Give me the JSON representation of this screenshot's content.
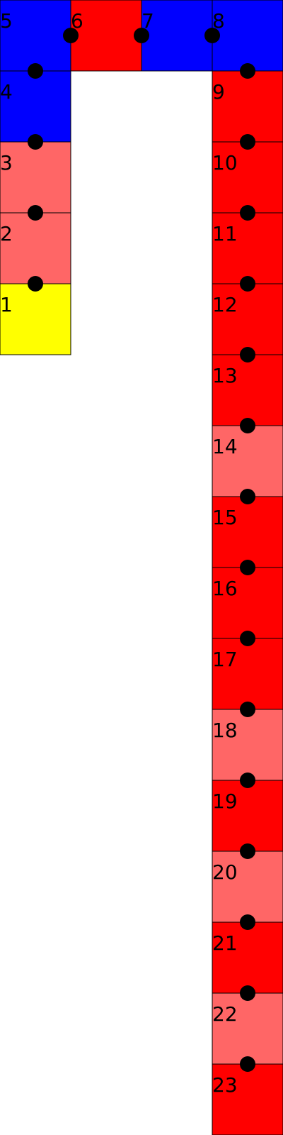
{
  "colors": {
    "background": "#ffffff",
    "blue": "#0000ff",
    "red": "#ff0000",
    "salmon": "#ff6666",
    "yellow": "#ffff00",
    "cell_border": "#000000",
    "connector": "#000000"
  },
  "cells": [
    {
      "label": "1",
      "color": "yellow"
    },
    {
      "label": "2",
      "color": "salmon"
    },
    {
      "label": "3",
      "color": "salmon"
    },
    {
      "label": "4",
      "color": "blue"
    },
    {
      "label": "5",
      "color": "blue"
    },
    {
      "label": "6",
      "color": "red"
    },
    {
      "label": "7",
      "color": "blue"
    },
    {
      "label": "8",
      "color": "blue"
    },
    {
      "label": "9",
      "color": "red"
    },
    {
      "label": "10",
      "color": "red"
    },
    {
      "label": "11",
      "color": "red"
    },
    {
      "label": "12",
      "color": "red"
    },
    {
      "label": "13",
      "color": "red"
    },
    {
      "label": "14",
      "color": "salmon"
    },
    {
      "label": "15",
      "color": "red"
    },
    {
      "label": "16",
      "color": "red"
    },
    {
      "label": "17",
      "color": "red"
    },
    {
      "label": "18",
      "color": "salmon"
    },
    {
      "label": "19",
      "color": "red"
    },
    {
      "label": "20",
      "color": "salmon"
    },
    {
      "label": "21",
      "color": "red"
    },
    {
      "label": "22",
      "color": "salmon"
    },
    {
      "label": "23",
      "color": "red"
    }
  ]
}
